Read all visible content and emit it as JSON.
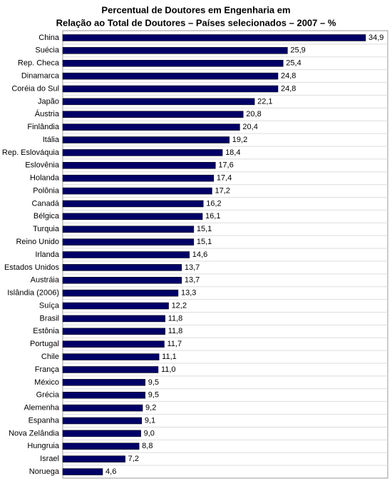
{
  "chart_data": {
    "type": "barh",
    "title": "Percentual de Doutores em Engenharia em",
    "subtitle": "Relação ao Total de Doutores – Países selecionados – 2007 – %",
    "categories": [
      "China",
      "Suécia",
      "Rep. Checa",
      "Dinamarca",
      "Coréia do Sul",
      "Japão",
      "Áustria",
      "Finlândia",
      "Itália",
      "Rep. Eslováquia",
      "Eslovênia",
      "Holanda",
      "Polônia",
      "Canadá",
      "Bélgica",
      "Turquia",
      "Reino Unido",
      "Irlanda",
      "Estados Unidos",
      "Austráia",
      "Islândia (2006)",
      "Suíça",
      "Brasil",
      "Estônia",
      "Portugal",
      "Chile",
      "França",
      "México",
      "Grécia",
      "Alemenha",
      "Espanha",
      "Nova Zelândia",
      "Hungruia",
      "Israel",
      "Noruega"
    ],
    "values": [
      34.9,
      25.9,
      25.4,
      24.8,
      24.8,
      22.1,
      20.8,
      20.4,
      19.2,
      18.4,
      17.6,
      17.4,
      17.2,
      16.2,
      16.1,
      15.1,
      15.1,
      14.6,
      13.7,
      13.7,
      13.3,
      12.2,
      11.8,
      11.8,
      11.7,
      11.1,
      11.0,
      9.5,
      9.5,
      9.2,
      9.1,
      9.0,
      8.8,
      7.2,
      4.6
    ],
    "value_labels": [
      "34,9",
      "25,9",
      "25,4",
      "24,8",
      "24,8",
      "22,1",
      "20,8",
      "20,4",
      "19,2",
      "18,4",
      "17,6",
      "17,4",
      "17,2",
      "16,2",
      "16,1",
      "15,1",
      "15,1",
      "14,6",
      "13,7",
      "13,7",
      "13,3",
      "12,2",
      "11,8",
      "11,8",
      "11,7",
      "11,1",
      "11,0",
      "9,5",
      "9,5",
      "9,2",
      "9,1",
      "9,0",
      "8,8",
      "7,2",
      "4,6"
    ],
    "color": "#000066"
  }
}
